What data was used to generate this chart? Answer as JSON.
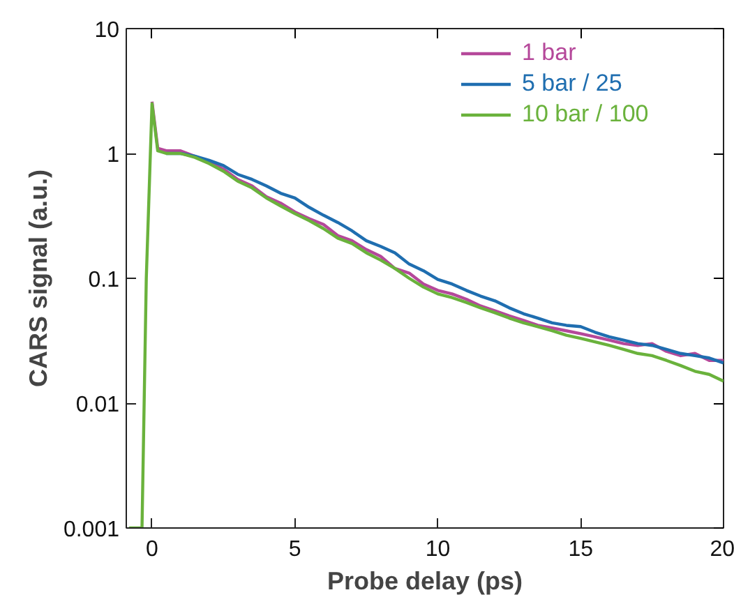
{
  "chart_data": {
    "type": "line",
    "xlabel": "Probe delay (ps)",
    "ylabel": "CARS signal (a.u.)",
    "log": "y",
    "xlim": [
      -0.9,
      20
    ],
    "ylim": [
      0.001,
      10
    ],
    "xticks": [
      0,
      5,
      10,
      15,
      20
    ],
    "yticks": [
      0.001,
      0.01,
      0.1,
      1,
      10
    ],
    "grid": false,
    "legend": "top right",
    "marker": "none",
    "line_style": "solid",
    "x": [
      -0.8,
      -0.35,
      -0.2,
      0,
      0.2,
      0.5,
      1,
      1.5,
      2,
      2.5,
      3,
      3.5,
      4,
      4.5,
      5,
      5.5,
      6,
      6.5,
      7,
      7.5,
      8,
      8.5,
      9,
      9.5,
      10,
      10.5,
      11,
      11.5,
      12,
      12.5,
      13,
      13.5,
      14,
      14.5,
      15,
      15.5,
      16,
      16.5,
      17,
      17.5,
      18,
      18.5,
      19,
      19.5,
      20
    ],
    "series": [
      {
        "name": "1 bar",
        "color": "#b5489a",
        "values": [
          null,
          null,
          null,
          2.6,
          1.1,
          1.05,
          1.05,
          0.95,
          0.85,
          0.75,
          0.62,
          0.55,
          0.45,
          0.4,
          0.34,
          0.3,
          0.27,
          0.22,
          0.2,
          0.17,
          0.15,
          0.12,
          0.11,
          0.09,
          0.08,
          0.075,
          0.068,
          0.06,
          0.055,
          0.05,
          0.046,
          0.042,
          0.04,
          0.038,
          0.036,
          0.034,
          0.032,
          0.03,
          0.029,
          0.03,
          0.026,
          0.024,
          0.025,
          0.022,
          0.022
        ]
      },
      {
        "name": "5 bar / 25",
        "color": "#1f6eb0",
        "values": [
          null,
          null,
          null,
          null,
          null,
          1.0,
          1.0,
          0.95,
          0.88,
          0.8,
          0.68,
          0.62,
          0.55,
          0.48,
          0.44,
          0.37,
          0.32,
          0.28,
          0.24,
          0.2,
          0.18,
          0.16,
          0.13,
          0.115,
          0.098,
          0.09,
          0.08,
          0.072,
          0.066,
          0.058,
          0.052,
          0.048,
          0.044,
          0.042,
          0.041,
          0.037,
          0.034,
          0.032,
          0.03,
          0.029,
          0.027,
          0.025,
          0.024,
          0.023,
          0.021
        ]
      },
      {
        "name": "10 bar / 100",
        "color": "#6ab23c",
        "values": [
          0.001,
          0.001,
          0.1,
          2.5,
          1.05,
          1.0,
          1.0,
          0.93,
          0.83,
          0.72,
          0.6,
          0.53,
          0.44,
          0.38,
          0.33,
          0.29,
          0.25,
          0.21,
          0.19,
          0.16,
          0.14,
          0.12,
          0.1,
          0.085,
          0.075,
          0.07,
          0.064,
          0.058,
          0.053,
          0.048,
          0.044,
          0.041,
          0.038,
          0.035,
          0.033,
          0.031,
          0.029,
          0.027,
          0.025,
          0.024,
          0.022,
          0.02,
          0.018,
          0.017,
          0.015
        ]
      }
    ]
  }
}
